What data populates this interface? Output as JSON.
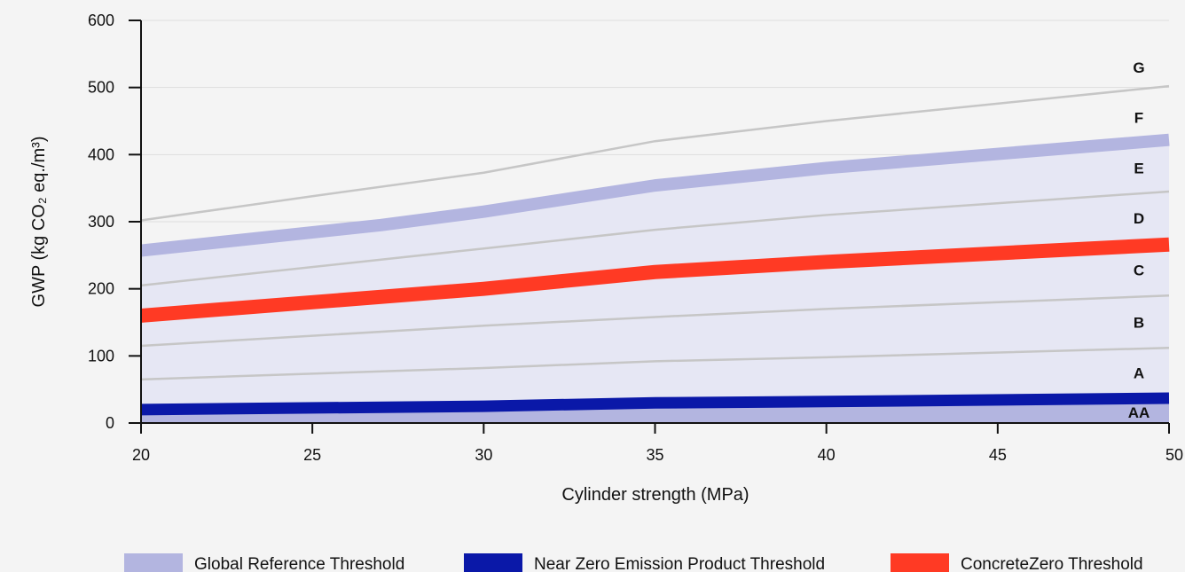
{
  "chart_data": {
    "type": "line",
    "xlabel": "Cylinder strength (MPa)",
    "ylabel": "GWP (kg CO₂ eq./m³)",
    "xlim": [
      20,
      50
    ],
    "ylim": [
      0,
      600
    ],
    "x_ticks": [
      20,
      25,
      30,
      35,
      40,
      45,
      50
    ],
    "y_ticks": [
      0,
      100,
      200,
      300,
      400,
      500,
      600
    ],
    "grid": "horizontal",
    "legend_position": "bottom",
    "colors": {
      "fill": "#e6e7f4",
      "aa_fill": "#b3b5e0",
      "global": "#b3b5e0",
      "near_zero": "#0a18a8",
      "concretezero": "#ff3a24",
      "class_line": "#c6c6c6",
      "grid": "#dedede"
    },
    "class_boundaries": [
      {
        "x": [
          20,
          30,
          35,
          40,
          50
        ],
        "y": [
          65,
          82,
          92,
          98,
          112
        ]
      },
      {
        "x": [
          20,
          30,
          35,
          40,
          50
        ],
        "y": [
          115,
          145,
          158,
          170,
          190
        ]
      },
      {
        "x": [
          20,
          30,
          35,
          40,
          50
        ],
        "y": [
          205,
          260,
          288,
          310,
          345
        ]
      },
      {
        "x": [
          20,
          25,
          30,
          35,
          40,
          50
        ],
        "y": [
          302,
          338,
          373,
          420,
          450,
          502
        ]
      }
    ],
    "series": [
      {
        "name": "Global Reference Threshold",
        "x": [
          20,
          27,
          30,
          35,
          40,
          50
        ],
        "y": [
          257,
          295,
          315,
          354,
          380,
          422
        ]
      },
      {
        "name": "Near Zero Emission Product Threshold",
        "x": [
          20,
          30,
          35,
          40,
          50
        ],
        "y": [
          20,
          25,
          30,
          32,
          37
        ]
      },
      {
        "name": "ConcreteZero Threshold",
        "x": [
          20,
          25,
          30,
          35,
          40,
          50
        ],
        "y": [
          160,
          180,
          200,
          225,
          240,
          266
        ]
      }
    ],
    "band_labels": [
      {
        "label": "AA",
        "y": 16
      },
      {
        "label": "A",
        "y": 75
      },
      {
        "label": "B",
        "y": 150
      },
      {
        "label": "C",
        "y": 228
      },
      {
        "label": "D",
        "y": 305
      },
      {
        "label": "E",
        "y": 380
      },
      {
        "label": "F",
        "y": 455
      },
      {
        "label": "G",
        "y": 530
      }
    ]
  }
}
